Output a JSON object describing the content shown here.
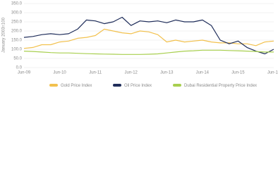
{
  "chart_data": {
    "type": "line",
    "y_label": "January 2003=100",
    "categories": [
      "Jun-09",
      null,
      null,
      null,
      "Jun-10",
      null,
      null,
      null,
      "Jun-11",
      null,
      null,
      null,
      "Jun-12",
      null,
      null,
      null,
      "Jun-13",
      null,
      null,
      null,
      "Jun-14",
      null,
      null,
      null,
      "Jun-15",
      null,
      null,
      null,
      "Jun-16"
    ],
    "series": [
      {
        "name": "Gold Price Index",
        "color": "#f2c14e",
        "values": [
          105,
          110,
          125,
          125,
          140,
          145,
          160,
          165,
          175,
          210,
          200,
          190,
          185,
          200,
          195,
          180,
          140,
          150,
          140,
          145,
          150,
          140,
          135,
          135,
          130,
          130,
          120,
          140,
          145
        ]
      },
      {
        "name": "Oil Price Index",
        "color": "#1f2d5a",
        "values": [
          165,
          170,
          180,
          185,
          180,
          185,
          210,
          260,
          255,
          240,
          250,
          275,
          230,
          255,
          250,
          255,
          245,
          260,
          250,
          250,
          260,
          230,
          150,
          130,
          145,
          110,
          90,
          75,
          100
        ]
      },
      {
        "name": "Dubai Residential Property Price Index",
        "color": "#a8cf4f",
        "values": [
          90,
          88,
          85,
          82,
          80,
          80,
          78,
          76,
          75,
          74,
          73,
          72,
          72,
          72,
          73,
          75,
          80,
          85,
          90,
          92,
          95,
          95,
          95,
          93,
          92,
          90,
          88,
          85,
          85
        ]
      }
    ],
    "ylim": [
      0,
      350
    ],
    "yticks": [
      {
        "value": 0,
        "label": "0.0"
      },
      {
        "value": 50,
        "label": "50.0"
      },
      {
        "value": 100,
        "label": "100.0"
      },
      {
        "value": 150,
        "label": "150.0"
      },
      {
        "value": 200,
        "label": "200.0"
      },
      {
        "value": 250,
        "label": "250.0"
      },
      {
        "value": 300,
        "label": "300.0"
      },
      {
        "value": 350,
        "label": "350.0"
      }
    ],
    "grid": true,
    "legend": "bottom"
  }
}
